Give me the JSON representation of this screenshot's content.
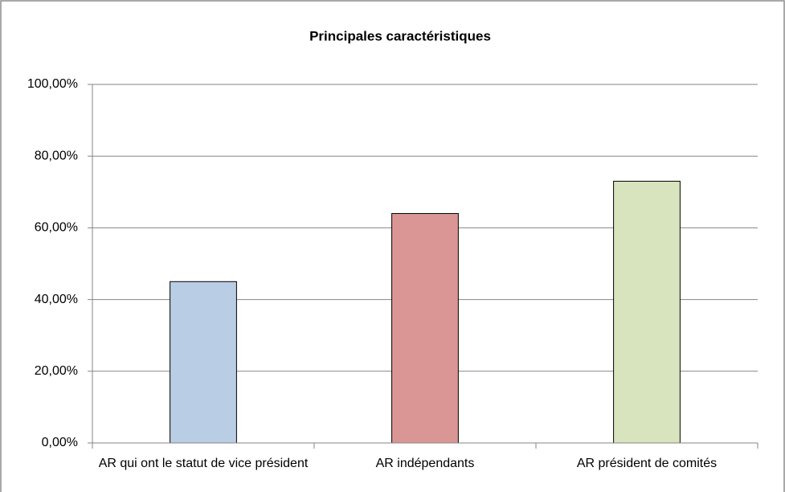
{
  "chart_data": {
    "type": "bar",
    "title": "Principales caractéristiques",
    "categories": [
      "AR qui ont le statut de vice président",
      "AR indépendants",
      "AR président de comités"
    ],
    "values": [
      45,
      64,
      73
    ],
    "colors": [
      "#b9cde5",
      "#d99694",
      "#d7e4bd"
    ],
    "ylim": [
      0,
      100
    ],
    "yticks": [
      {
        "value": 0,
        "label": "0,00%"
      },
      {
        "value": 20,
        "label": "20,00%"
      },
      {
        "value": 40,
        "label": "40,00%"
      },
      {
        "value": 60,
        "label": "60,00%"
      },
      {
        "value": 80,
        "label": "80,00%"
      },
      {
        "value": 100,
        "label": "100,00%"
      }
    ],
    "grid": true
  }
}
